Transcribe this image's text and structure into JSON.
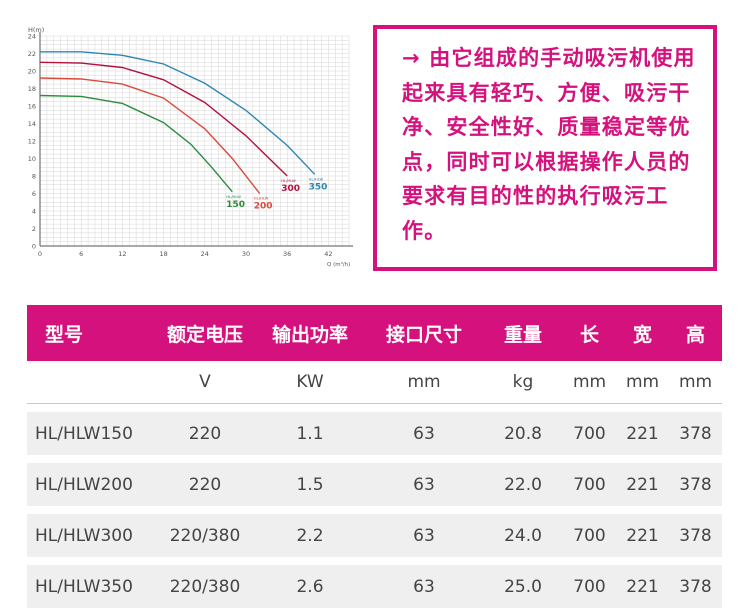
{
  "chart_data": {
    "type": "line",
    "ylabel": "H(m)",
    "xlabel": "Q (m³/h)",
    "xlim": [
      0,
      45
    ],
    "ylim": [
      0,
      24
    ],
    "xticks": [
      "0",
      "6",
      "12",
      "18",
      "24",
      "30",
      "36",
      "42"
    ],
    "yticks": [
      "0",
      "2",
      "4",
      "6",
      "8",
      "10",
      "12",
      "14",
      "16",
      "18",
      "20",
      "22",
      "24"
    ],
    "grid": true,
    "series": [
      {
        "name": "HL/HLW 150",
        "prefix": "HL/HLW",
        "number": "150",
        "color": "#2e8b3e",
        "x": [
          0,
          6,
          12,
          18,
          22,
          25,
          28
        ],
        "y": [
          17.2,
          17.1,
          16.3,
          14.1,
          11.6,
          9.0,
          6.2
        ]
      },
      {
        "name": "HL/HLW 200",
        "prefix": "HL/HLW",
        "number": "200",
        "color": "#d94a3d",
        "x": [
          0,
          6,
          12,
          18,
          24,
          28,
          32
        ],
        "y": [
          19.2,
          19.1,
          18.5,
          16.9,
          13.4,
          10.0,
          6.0
        ]
      },
      {
        "name": "HL/HLW 300",
        "prefix": "HL/HLW",
        "number": "300",
        "color": "#b3123e",
        "x": [
          0,
          6,
          12,
          18,
          24,
          30,
          36
        ],
        "y": [
          21.0,
          20.9,
          20.4,
          19.0,
          16.4,
          12.6,
          8.0
        ]
      },
      {
        "name": "HL/HLW 350",
        "prefix": "HL/HLW",
        "number": "350",
        "color": "#2f86b3",
        "x": [
          0,
          6,
          12,
          18,
          24,
          30,
          36,
          40
        ],
        "y": [
          22.2,
          22.2,
          21.8,
          20.8,
          18.6,
          15.5,
          11.5,
          8.2
        ]
      }
    ]
  },
  "callout": {
    "text": "→ 由它组成的手动吸污机使用起来具有轻巧、方便、吸污干净、安全性好、质量稳定等优点，同时可以根据操作人员的要求有目的性的执行吸污工作。",
    "border_color": "#d4117c"
  },
  "table": {
    "header_color": "#d4117c",
    "headers": [
      "型号",
      "额定电压",
      "输出功率",
      "接口尺寸",
      "重量",
      "长",
      "宽",
      "高"
    ],
    "units": [
      "",
      "V",
      "KW",
      "mm",
      "kg",
      "mm",
      "mm",
      "mm"
    ],
    "rows": [
      [
        "HL/HLW150",
        "220",
        "1.1",
        "63",
        "20.8",
        "700",
        "221",
        "378"
      ],
      [
        "HL/HLW200",
        "220",
        "1.5",
        "63",
        "22.0",
        "700",
        "221",
        "378"
      ],
      [
        "HL/HLW300",
        "220/380",
        "2.2",
        "63",
        "24.0",
        "700",
        "221",
        "378"
      ],
      [
        "HL/HLW350",
        "220/380",
        "2.6",
        "63",
        "25.0",
        "700",
        "221",
        "378"
      ]
    ]
  }
}
